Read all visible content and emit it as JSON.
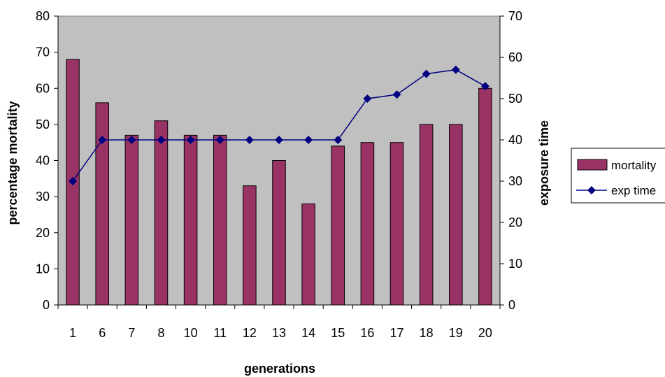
{
  "chart_data": {
    "type": "bar",
    "xlabel": "generations",
    "ylabel": "percentage mortality",
    "y2label": "exposure time",
    "categories": [
      "1",
      "6",
      "7",
      "8",
      "10",
      "11",
      "12",
      "13",
      "14",
      "15",
      "16",
      "17",
      "18",
      "19",
      "20"
    ],
    "ylim": [
      0,
      80
    ],
    "y2lim": [
      0,
      70
    ],
    "yticks": [
      "0",
      "10",
      "20",
      "30",
      "40",
      "50",
      "60",
      "70",
      "80"
    ],
    "y2ticks": [
      "0",
      "10",
      "20",
      "30",
      "40",
      "50",
      "60",
      "70"
    ],
    "series": [
      {
        "name": "mortality",
        "kind": "bar",
        "axis": "left",
        "color": "#993366",
        "values": [
          68,
          56,
          47,
          51,
          47,
          47,
          33,
          40,
          28,
          44,
          45,
          45,
          50,
          50,
          60
        ]
      },
      {
        "name": "exp time",
        "kind": "line",
        "axis": "right",
        "color": "#000080",
        "marker": "diamond",
        "values": [
          30,
          40,
          40,
          40,
          40,
          40,
          40,
          40,
          40,
          40,
          50,
          51,
          56,
          57,
          53
        ]
      }
    ],
    "plot_background": "#c0c0c0",
    "grid": false,
    "legend_position": "right"
  }
}
